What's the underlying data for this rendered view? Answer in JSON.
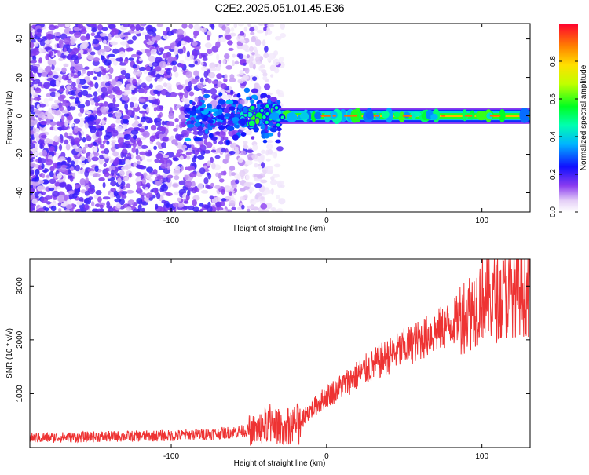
{
  "figure_title": "C2E2.2025.051.01.45.E36",
  "chart_data": [
    {
      "type": "heatmap",
      "xlabel": "Height of straight line (km)",
      "ylabel": "Frequency (Hz)",
      "xlim": [
        -191,
        131
      ],
      "ylim": [
        -50,
        48
      ],
      "x_ticks": [
        -100,
        0,
        100
      ],
      "y_ticks": [
        -40,
        -20,
        0,
        20,
        40
      ],
      "colorbar": {
        "label": "Normalized spectral amplitude",
        "range": [
          0,
          1
        ],
        "ticks": [
          0.0,
          0.2,
          0.4,
          0.6,
          0.8
        ]
      },
      "features": {
        "noise_region_x": [
          -191,
          -28
        ],
        "signal_start_x": -40,
        "signal_frequency": 0,
        "signal_peak_amplitude": 0.9
      }
    },
    {
      "type": "line",
      "xlabel": "Height of straight line (km)",
      "ylabel": "SNR (10 * v/v)",
      "xlim": [
        -191,
        131
      ],
      "ylim": [
        0,
        3500
      ],
      "x_ticks": [
        -100,
        0,
        100
      ],
      "y_ticks": [
        1000,
        2000,
        3000
      ],
      "color": "#ee3333",
      "series": [
        {
          "x": [
            -191,
            -150,
            -100,
            -70,
            -45,
            -35,
            -30,
            -20,
            -10,
            0,
            20,
            40,
            60,
            80,
            95,
            100,
            110,
            120,
            131
          ],
          "values": [
            180,
            200,
            220,
            260,
            330,
            500,
            380,
            450,
            700,
            950,
            1350,
            1700,
            2000,
            2300,
            2600,
            2800,
            2750,
            2900,
            2900
          ]
        }
      ]
    }
  ]
}
